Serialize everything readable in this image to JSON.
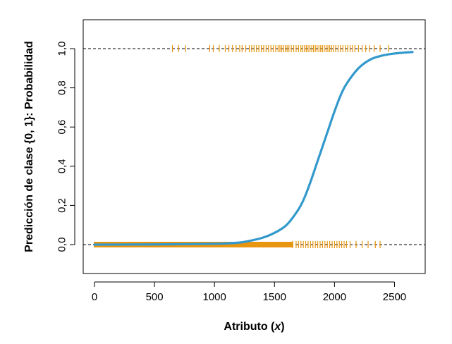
{
  "chart_data": {
    "type": "line",
    "title": "",
    "xlabel": "Atributo",
    "xlabel_var": "x",
    "ylabel": "Predicción de clase {0, 1}: Probabilidad",
    "xlim": [
      0,
      2650
    ],
    "ylim": [
      -0.15,
      1.15
    ],
    "xticks": [
      0,
      500,
      1000,
      1500,
      2000,
      2500
    ],
    "yticks": [
      0,
      0.2,
      0.4,
      0.6,
      0.8,
      1.0
    ],
    "xtick_labels": [
      "0",
      "500",
      "1000",
      "1500",
      "2000",
      "2500"
    ],
    "ytick_labels": [
      "0,0",
      "0,2",
      "0,4",
      "0,6",
      "0,8",
      "1,0"
    ],
    "reference_lines": [
      0,
      1
    ],
    "reference_line_style": "dashed",
    "grid": false,
    "legend": "none",
    "series": [
      {
        "type": "line",
        "color": "#3399cc",
        "x": [
          0,
          500,
          1000,
          1200,
          1300,
          1400,
          1500,
          1600,
          1700,
          1750,
          1800,
          1850,
          1900,
          1950,
          2000,
          2050,
          2100,
          2200,
          2300,
          2400,
          2500,
          2650
        ],
        "y": [
          0.0,
          0.001,
          0.004,
          0.01,
          0.02,
          0.035,
          0.06,
          0.1,
          0.18,
          0.24,
          0.32,
          0.41,
          0.5,
          0.59,
          0.68,
          0.76,
          0.82,
          0.9,
          0.945,
          0.965,
          0.975,
          0.983
        ]
      },
      {
        "type": "rug",
        "color": "#e8950f",
        "y": 1,
        "x": [
          650,
          700,
          760,
          960,
          990,
          1040,
          1090,
          1120,
          1150,
          1180,
          1210,
          1230,
          1260,
          1290,
          1310,
          1330,
          1350,
          1370,
          1390,
          1410,
          1430,
          1450,
          1470,
          1490,
          1510,
          1530,
          1545,
          1560,
          1575,
          1590,
          1605,
          1620,
          1640,
          1660,
          1680,
          1700,
          1720,
          1735,
          1750,
          1765,
          1780,
          1795,
          1810,
          1825,
          1840,
          1855,
          1870,
          1885,
          1900,
          1915,
          1930,
          1945,
          1960,
          1975,
          1990,
          2010,
          2030,
          2050,
          2070,
          2090,
          2110,
          2130,
          2150,
          2170,
          2200,
          2230,
          2260,
          2290,
          2330,
          2380,
          2450
        ]
      },
      {
        "type": "rug",
        "color": "#e8950f",
        "y": 0,
        "x": [
          1650,
          1680,
          1700,
          1720,
          1740,
          1760,
          1780,
          1800,
          1820,
          1840,
          1860,
          1880,
          1900,
          1920,
          1940,
          1960,
          1980,
          2000,
          2020,
          2040,
          2060,
          2080,
          2100,
          2130,
          2180,
          2230,
          2280,
          2340,
          2380
        ],
        "dense_band": [
          0,
          1650
        ]
      }
    ]
  }
}
